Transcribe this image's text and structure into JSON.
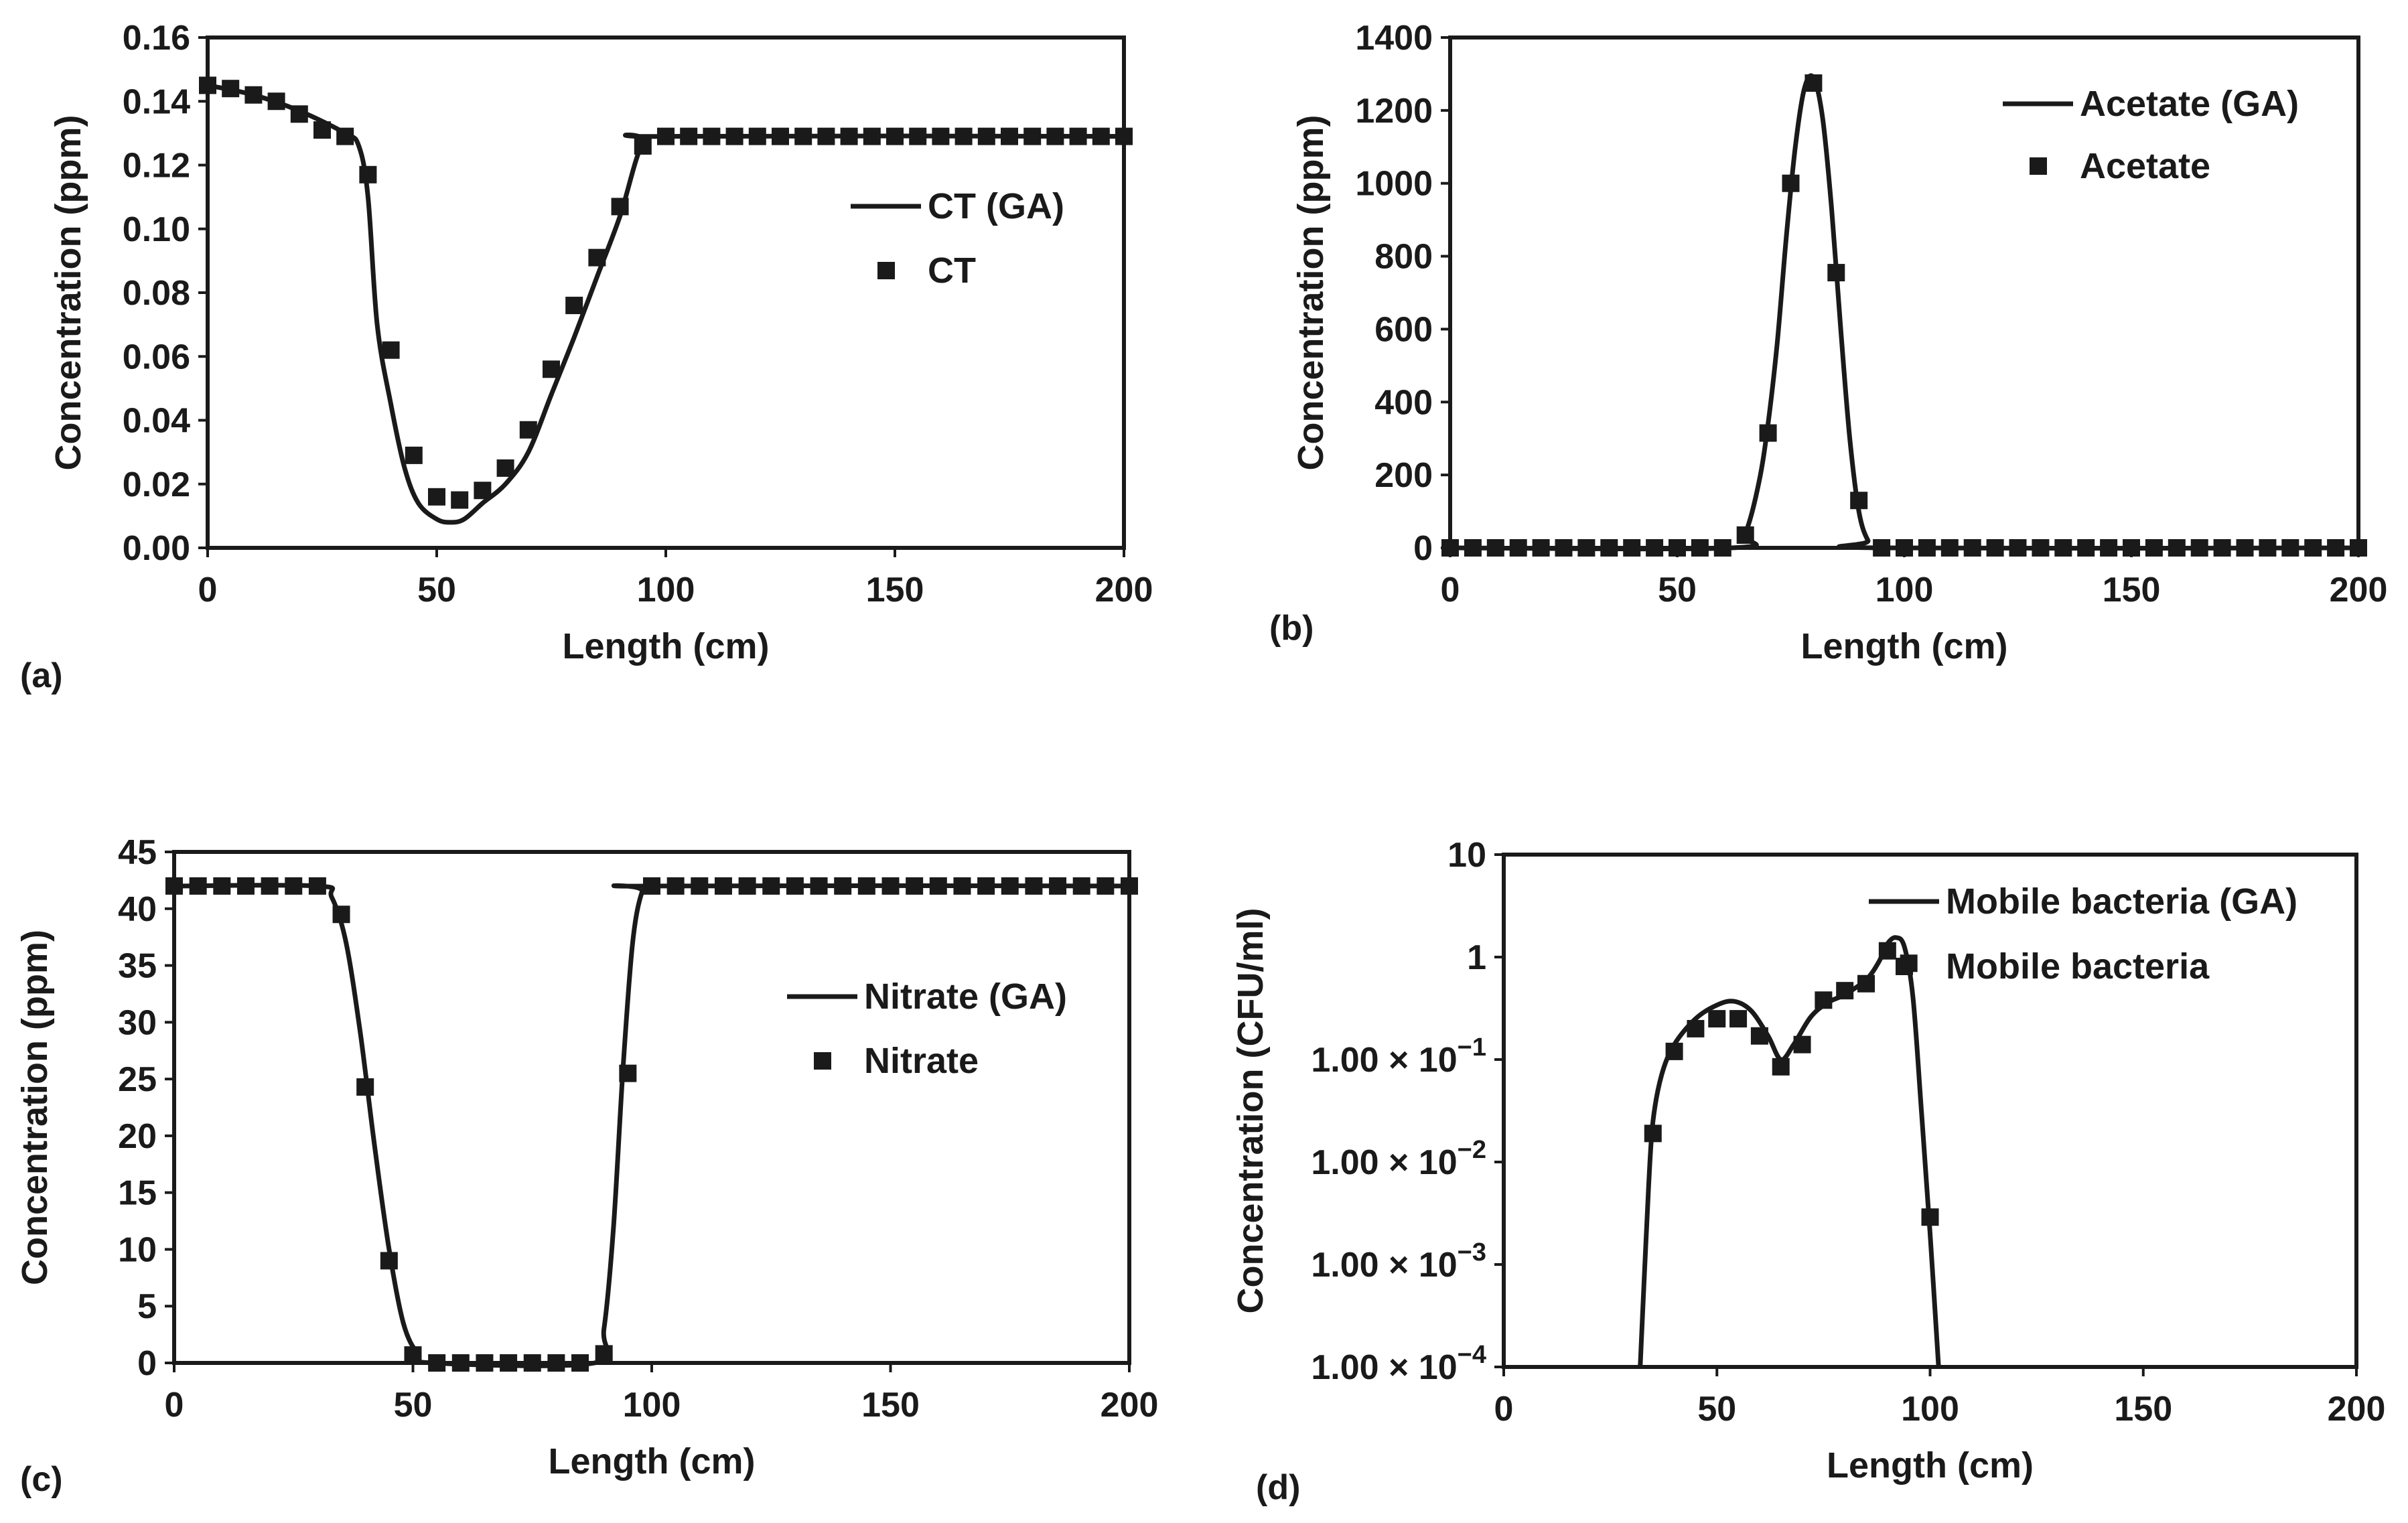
{
  "figure": {
    "panels": [
      "a",
      "b",
      "c",
      "d"
    ]
  },
  "colors": {
    "line": "#1a1a1a",
    "marker": "#1a1a1a",
    "background": "#ffffff"
  },
  "chart_data": [
    {
      "id": "a",
      "panel_label": "(a)",
      "type": "line",
      "scale": "linear",
      "title": "",
      "xlabel": "Length (cm)",
      "ylabel": "Concentration (ppm)",
      "xlim": [
        0,
        200
      ],
      "ylim": [
        0,
        0.16
      ],
      "xticks": [
        0,
        50,
        100,
        150,
        200
      ],
      "yticks": [
        0,
        0.02,
        0.04,
        0.06,
        0.08,
        0.1,
        0.12,
        0.14,
        0.16
      ],
      "ytick_labels": [
        "0.00",
        "0.02",
        "0.04",
        "0.06",
        "0.08",
        "0.10",
        "0.12",
        "0.14",
        "0.16"
      ],
      "xtick_labels": [
        "0",
        "50",
        "100",
        "150",
        "200"
      ],
      "legend": {
        "position": "middle-right",
        "line_label": "CT (GA)",
        "marker_label": "CT"
      },
      "series": [
        {
          "name": "CT (GA)",
          "style": "line",
          "x": [
            0,
            10,
            20,
            30,
            33,
            35,
            37,
            40,
            43,
            46,
            50,
            53,
            56,
            60,
            65,
            70,
            75,
            80,
            85,
            90,
            95,
            100,
            200
          ],
          "y": [
            0.145,
            0.142,
            0.137,
            0.13,
            0.126,
            0.11,
            0.07,
            0.045,
            0.025,
            0.014,
            0.009,
            0.008,
            0.009,
            0.014,
            0.02,
            0.03,
            0.048,
            0.066,
            0.085,
            0.104,
            0.127,
            0.129,
            0.129
          ]
        },
        {
          "name": "CT",
          "style": "marker",
          "x": [
            0,
            5,
            10,
            15,
            20,
            25,
            30,
            35,
            40,
            45,
            50,
            55,
            60,
            65,
            70,
            75,
            80,
            85,
            90,
            95,
            100,
            105,
            110,
            115,
            120,
            125,
            130,
            135,
            140,
            145,
            150,
            155,
            160,
            165,
            170,
            175,
            180,
            185,
            190,
            195,
            200
          ],
          "y": [
            0.145,
            0.144,
            0.142,
            0.14,
            0.136,
            0.131,
            0.129,
            0.117,
            0.062,
            0.029,
            0.016,
            0.015,
            0.018,
            0.025,
            0.037,
            0.056,
            0.076,
            0.091,
            0.107,
            0.126,
            0.129,
            0.129,
            0.129,
            0.129,
            0.129,
            0.129,
            0.129,
            0.129,
            0.129,
            0.129,
            0.129,
            0.129,
            0.129,
            0.129,
            0.129,
            0.129,
            0.129,
            0.129,
            0.129,
            0.129,
            0.129
          ]
        }
      ]
    },
    {
      "id": "b",
      "panel_label": "(b)",
      "type": "line",
      "scale": "linear",
      "title": "",
      "xlabel": "Length (cm)",
      "ylabel": "Concentration (ppm)",
      "xlim": [
        0,
        200
      ],
      "ylim": [
        0,
        1400
      ],
      "xticks": [
        0,
        50,
        100,
        150,
        200
      ],
      "yticks": [
        0,
        200,
        400,
        600,
        800,
        1000,
        1200,
        1400
      ],
      "ytick_labels": [
        "0",
        "200",
        "400",
        "600",
        "800",
        "1000",
        "1200",
        "1400"
      ],
      "xtick_labels": [
        "0",
        "50",
        "100",
        "150",
        "200"
      ],
      "legend": {
        "position": "top-right",
        "line_label": "Acetate (GA)",
        "marker_label": "Acetate"
      },
      "series": [
        {
          "name": "Acetate (GA)",
          "style": "line",
          "x": [
            0,
            62,
            65,
            68,
            70,
            72,
            74,
            76,
            78,
            80,
            82,
            84,
            86,
            88,
            90,
            92,
            94,
            200
          ],
          "y": [
            0,
            0,
            40,
            180,
            340,
            560,
            850,
            1100,
            1260,
            1290,
            1180,
            930,
            600,
            300,
            100,
            20,
            0,
            0
          ]
        },
        {
          "name": "Acetate",
          "style": "marker",
          "x": [
            0,
            5,
            10,
            15,
            20,
            25,
            30,
            35,
            40,
            45,
            50,
            55,
            60,
            65,
            70,
            75,
            80,
            85,
            90,
            95,
            100,
            105,
            110,
            115,
            120,
            125,
            130,
            135,
            140,
            145,
            150,
            155,
            160,
            165,
            170,
            175,
            180,
            185,
            190,
            195,
            200
          ],
          "y": [
            0,
            0,
            0,
            0,
            0,
            0,
            0,
            0,
            0,
            0,
            0,
            0,
            0,
            35,
            315,
            1000,
            1275,
            755,
            130,
            0,
            0,
            0,
            0,
            0,
            0,
            0,
            0,
            0,
            0,
            0,
            0,
            0,
            0,
            0,
            0,
            0,
            0,
            0,
            0,
            0,
            0
          ]
        }
      ]
    },
    {
      "id": "c",
      "panel_label": "(c)",
      "type": "line",
      "scale": "linear",
      "title": "",
      "xlabel": "Length (cm)",
      "ylabel": "Concentration (ppm)",
      "xlim": [
        0,
        200
      ],
      "ylim": [
        0,
        45
      ],
      "xticks": [
        0,
        50,
        100,
        150,
        200
      ],
      "yticks": [
        0,
        5,
        10,
        15,
        20,
        25,
        30,
        35,
        40,
        45
      ],
      "ytick_labels": [
        "0",
        "5",
        "10",
        "15",
        "20",
        "25",
        "30",
        "35",
        "40",
        "45"
      ],
      "xtick_labels": [
        "0",
        "50",
        "100",
        "150",
        "200"
      ],
      "legend": {
        "position": "middle-right",
        "line_label": "Nitrate (GA)",
        "marker_label": "Nitrate"
      },
      "series": [
        {
          "name": "Nitrate (GA)",
          "style": "line",
          "x": [
            0,
            30,
            33,
            36,
            39,
            42,
            45,
            48,
            51,
            54,
            88,
            90,
            92,
            94,
            96,
            98,
            100,
            200
          ],
          "y": [
            42,
            42,
            41,
            37,
            29,
            19,
            10,
            3.5,
            0.8,
            0,
            0,
            3,
            12,
            26,
            37,
            41.5,
            42,
            42
          ]
        },
        {
          "name": "Nitrate",
          "style": "marker",
          "x": [
            0,
            5,
            10,
            15,
            20,
            25,
            30,
            35,
            40,
            45,
            50,
            55,
            60,
            65,
            70,
            75,
            80,
            85,
            90,
            95,
            100,
            105,
            110,
            115,
            120,
            125,
            130,
            135,
            140,
            145,
            150,
            155,
            160,
            165,
            170,
            175,
            180,
            185,
            190,
            195,
            200
          ],
          "y": [
            42,
            42,
            42,
            42,
            42,
            42,
            42,
            39.5,
            24.3,
            9,
            0.7,
            0,
            0,
            0,
            0,
            0,
            0,
            0,
            0.8,
            25.5,
            42,
            42,
            42,
            42,
            42,
            42,
            42,
            42,
            42,
            42,
            42,
            42,
            42,
            42,
            42,
            42,
            42,
            42,
            42,
            42,
            42
          ]
        }
      ]
    },
    {
      "id": "d",
      "panel_label": "(d)",
      "type": "line",
      "scale": "log",
      "title": "",
      "xlabel": "Length (cm)",
      "ylabel": "Concentration (CFU/ml)",
      "xlim": [
        0,
        200
      ],
      "ylim": [
        0.0001,
        10
      ],
      "xticks": [
        0,
        50,
        100,
        150,
        200
      ],
      "yticks": [
        0.0001,
        0.001,
        0.01,
        0.1,
        1,
        10
      ],
      "ytick_labels": [
        {
          "mantissa": "1.00 × 10",
          "exp": "−4"
        },
        {
          "mantissa": "1.00 × 10",
          "exp": "−3"
        },
        {
          "mantissa": "1.00 × 10",
          "exp": "−2"
        },
        {
          "mantissa": "1.00 × 10",
          "exp": "−1"
        },
        {
          "mantissa": "1",
          "exp": ""
        },
        {
          "mantissa": "10",
          "exp": ""
        }
      ],
      "xtick_labels": [
        "0",
        "50",
        "100",
        "150",
        "200"
      ],
      "legend": {
        "position": "top-right",
        "line_label": "Mobile bacteria (GA)",
        "marker_label": "Mobile bacteria"
      },
      "series": [
        {
          "name": "Mobile bacteria (GA)",
          "style": "line",
          "x": [
            32,
            33,
            34,
            35,
            37,
            40,
            45,
            50,
            54,
            58,
            62,
            65,
            68,
            72,
            76,
            80,
            85,
            88,
            90,
            92,
            94,
            96,
            98,
            100,
            102
          ],
          "y": [
            0.0001,
            0.0008,
            0.006,
            0.025,
            0.07,
            0.14,
            0.25,
            0.34,
            0.37,
            0.3,
            0.17,
            0.1,
            0.14,
            0.26,
            0.36,
            0.43,
            0.6,
            0.9,
            1.35,
            1.55,
            1.25,
            0.4,
            0.03,
            0.002,
            0.0001
          ]
        },
        {
          "name": "Mobile bacteria",
          "style": "marker",
          "x": [
            35,
            40,
            45,
            50,
            55,
            60,
            65,
            70,
            75,
            80,
            85,
            90,
            95,
            100
          ],
          "y": [
            0.019,
            0.12,
            0.2,
            0.25,
            0.25,
            0.17,
            0.085,
            0.14,
            0.38,
            0.47,
            0.55,
            1.15,
            0.87,
            0.0029
          ]
        }
      ]
    }
  ]
}
